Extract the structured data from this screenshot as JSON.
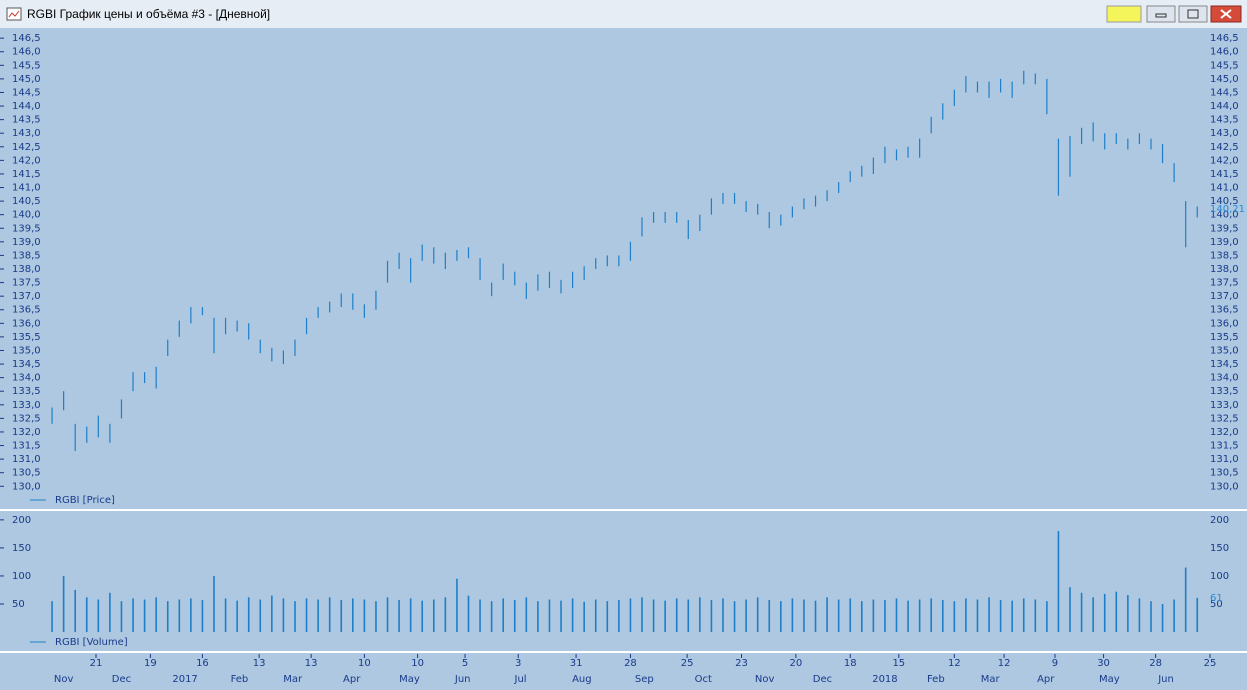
{
  "window": {
    "title": "RGBI График цены и объёма #3 - [Дневной]"
  },
  "x_axis": {
    "xlim": [
      -4.5,
      103.3
    ],
    "day_ticks": [
      {
        "value": 3.8,
        "label": "21"
      },
      {
        "value": 8.5,
        "label": "19"
      },
      {
        "value": 13.0,
        "label": "16"
      },
      {
        "value": 17.9,
        "label": "13"
      },
      {
        "value": 22.4,
        "label": "13"
      },
      {
        "value": 27.0,
        "label": "10"
      },
      {
        "value": 31.6,
        "label": "10"
      },
      {
        "value": 35.7,
        "label": "5"
      },
      {
        "value": 40.3,
        "label": "3"
      },
      {
        "value": 45.3,
        "label": "31"
      },
      {
        "value": 50.0,
        "label": "28"
      },
      {
        "value": 54.9,
        "label": "25"
      },
      {
        "value": 59.6,
        "label": "23"
      },
      {
        "value": 64.3,
        "label": "20"
      },
      {
        "value": 69.0,
        "label": "18"
      },
      {
        "value": 73.2,
        "label": "15"
      },
      {
        "value": 78.0,
        "label": "12"
      },
      {
        "value": 82.3,
        "label": "12"
      },
      {
        "value": 86.7,
        "label": "9"
      },
      {
        "value": 90.9,
        "label": "30"
      },
      {
        "value": 95.4,
        "label": "28"
      },
      {
        "value": 100.1,
        "label": "25"
      }
    ],
    "month_ticks": [
      {
        "value": 1.0,
        "label": "Nov"
      },
      {
        "value": 6.0,
        "label": "Dec"
      },
      {
        "value": 11.5,
        "label": "2017"
      },
      {
        "value": 16.2,
        "label": "Feb"
      },
      {
        "value": 20.8,
        "label": "Mar"
      },
      {
        "value": 25.9,
        "label": "Apr"
      },
      {
        "value": 30.9,
        "label": "May"
      },
      {
        "value": 35.5,
        "label": "Jun"
      },
      {
        "value": 40.5,
        "label": "Jul"
      },
      {
        "value": 45.8,
        "label": "Aug"
      },
      {
        "value": 51.2,
        "label": "Sep"
      },
      {
        "value": 56.3,
        "label": "Oct"
      },
      {
        "value": 61.6,
        "label": "Nov"
      },
      {
        "value": 66.6,
        "label": "Dec"
      },
      {
        "value": 72.0,
        "label": "2018"
      },
      {
        "value": 76.4,
        "label": "Feb"
      },
      {
        "value": 81.1,
        "label": "Mar"
      },
      {
        "value": 85.9,
        "label": "Apr"
      },
      {
        "value": 91.4,
        "label": "May"
      },
      {
        "value": 96.3,
        "label": "Jun"
      }
    ]
  },
  "chart_data": [
    {
      "type": "range-bar",
      "series": [
        {
          "name": "RGBI [Price]",
          "color": "#1e7fc8",
          "high": [
            132.9,
            133.5,
            132.3,
            132.2,
            132.6,
            132.3,
            133.2,
            134.2,
            134.2,
            134.4,
            135.4,
            136.1,
            136.6,
            136.6,
            136.2,
            136.2,
            136.1,
            136.0,
            135.4,
            135.1,
            135.0,
            135.4,
            136.2,
            136.6,
            136.8,
            137.1,
            137.1,
            136.7,
            137.2,
            138.3,
            138.6,
            138.4,
            138.9,
            138.8,
            138.6,
            138.7,
            138.8,
            138.4,
            137.5,
            138.2,
            137.9,
            137.5,
            137.8,
            137.9,
            137.6,
            137.9,
            138.1,
            138.4,
            138.5,
            138.5,
            139.0,
            139.9,
            140.1,
            140.1,
            140.1,
            139.8,
            140.0,
            140.6,
            140.8,
            140.8,
            140.5,
            140.4,
            140.1,
            140.0,
            140.3,
            140.6,
            140.7,
            140.9,
            141.2,
            141.6,
            141.8,
            142.1,
            142.5,
            142.4,
            142.5,
            142.8,
            143.6,
            144.1,
            144.6,
            145.1,
            144.9,
            144.9,
            145.0,
            144.9,
            145.3,
            145.2,
            145.0,
            142.8,
            142.9,
            143.2,
            143.4,
            143.0,
            143.0,
            142.8,
            143.0,
            142.8,
            142.6,
            141.9,
            140.5,
            140.3
          ],
          "low": [
            132.3,
            132.8,
            131.3,
            131.6,
            131.8,
            131.6,
            132.5,
            133.5,
            133.8,
            133.6,
            134.8,
            135.5,
            136.0,
            136.3,
            134.9,
            135.6,
            135.7,
            135.4,
            134.9,
            134.6,
            134.5,
            134.8,
            135.6,
            136.2,
            136.4,
            136.6,
            136.5,
            136.2,
            136.5,
            137.5,
            138.0,
            137.5,
            138.3,
            138.2,
            138.0,
            138.3,
            138.4,
            137.6,
            137.0,
            137.6,
            137.4,
            136.9,
            137.2,
            137.3,
            137.1,
            137.3,
            137.6,
            138.0,
            138.1,
            138.1,
            138.3,
            139.2,
            139.7,
            139.7,
            139.7,
            139.1,
            139.4,
            140.0,
            140.4,
            140.4,
            140.1,
            140.0,
            139.5,
            139.6,
            139.9,
            140.2,
            140.3,
            140.5,
            140.8,
            141.2,
            141.4,
            141.5,
            141.9,
            142.0,
            142.1,
            142.1,
            143.0,
            143.5,
            144.0,
            144.5,
            144.5,
            144.3,
            144.5,
            144.3,
            144.8,
            144.8,
            143.7,
            140.7,
            141.4,
            142.6,
            142.7,
            142.4,
            142.6,
            142.4,
            142.6,
            142.4,
            141.9,
            141.2,
            138.8,
            139.9
          ]
        }
      ],
      "last_value": {
        "value": 140.21,
        "label": "140,21"
      },
      "ylim": [
        129.2,
        146.8
      ],
      "yticks": [
        {
          "value": 130.0,
          "label": "130,0"
        },
        {
          "value": 130.5,
          "label": "130,5"
        },
        {
          "value": 131.0,
          "label": "131,0"
        },
        {
          "value": 131.5,
          "label": "131,5"
        },
        {
          "value": 132.0,
          "label": "132,0"
        },
        {
          "value": 132.5,
          "label": "132,5"
        },
        {
          "value": 133.0,
          "label": "133,0"
        },
        {
          "value": 133.5,
          "label": "133,5"
        },
        {
          "value": 134.0,
          "label": "134,0"
        },
        {
          "value": 134.5,
          "label": "134,5"
        },
        {
          "value": 135.0,
          "label": "135,0"
        },
        {
          "value": 135.5,
          "label": "135,5"
        },
        {
          "value": 136.0,
          "label": "136,0"
        },
        {
          "value": 136.5,
          "label": "136,5"
        },
        {
          "value": 137.0,
          "label": "137,0"
        },
        {
          "value": 137.5,
          "label": "137,5"
        },
        {
          "value": 138.0,
          "label": "138,0"
        },
        {
          "value": 138.5,
          "label": "138,5"
        },
        {
          "value": 139.0,
          "label": "139,0"
        },
        {
          "value": 139.5,
          "label": "139,5"
        },
        {
          "value": 140.0,
          "label": "140,0"
        },
        {
          "value": 140.5,
          "label": "140,5"
        },
        {
          "value": 141.0,
          "label": "141,0"
        },
        {
          "value": 141.5,
          "label": "141,5"
        },
        {
          "value": 142.0,
          "label": "142,0"
        },
        {
          "value": 142.5,
          "label": "142,5"
        },
        {
          "value": 143.0,
          "label": "143,0"
        },
        {
          "value": 143.5,
          "label": "143,5"
        },
        {
          "value": 144.0,
          "label": "144,0"
        },
        {
          "value": 144.5,
          "label": "144,5"
        },
        {
          "value": 145.0,
          "label": "145,0"
        },
        {
          "value": 145.5,
          "label": "145,5"
        },
        {
          "value": 146.0,
          "label": "146,0"
        },
        {
          "value": 146.5,
          "label": "146,5"
        }
      ]
    },
    {
      "type": "bar",
      "series": [
        {
          "name": "RGBI [Volume]",
          "color": "#1e7fc8",
          "values": [
            55,
            100,
            75,
            62,
            58,
            70,
            55,
            60,
            58,
            62,
            55,
            58,
            60,
            57,
            100,
            60,
            56,
            62,
            58,
            65,
            60,
            55,
            60,
            58,
            62,
            57,
            60,
            58,
            55,
            62,
            57,
            60,
            56,
            58,
            62,
            95,
            65,
            58,
            55,
            60,
            57,
            62,
            55,
            58,
            56,
            60,
            54,
            58,
            55,
            57,
            60,
            62,
            58,
            56,
            60,
            58,
            62,
            57,
            60,
            55,
            58,
            62,
            57,
            55,
            60,
            58,
            56,
            62,
            58,
            60,
            55,
            58,
            57,
            60,
            56,
            58,
            60,
            57,
            55,
            60,
            58,
            62,
            57,
            56,
            60,
            58,
            55,
            180,
            80,
            70,
            62,
            68,
            72,
            66,
            60,
            55,
            50,
            58,
            115,
            61
          ]
        }
      ],
      "last_value": 61,
      "ylim": [
        -32,
        214
      ],
      "yticks": [
        50,
        100,
        150,
        200
      ]
    }
  ]
}
